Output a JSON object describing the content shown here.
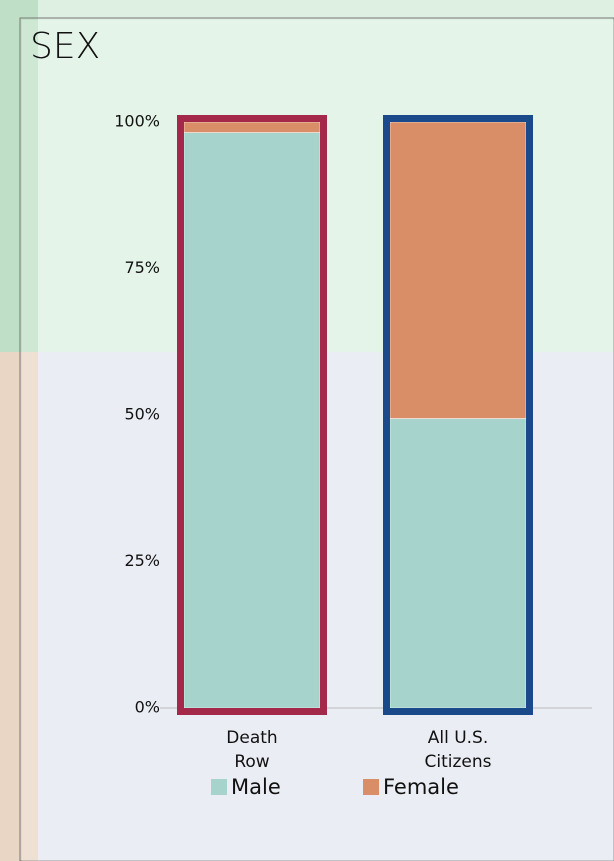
{
  "chart_data": {
    "type": "stacked_bar",
    "title": "SEX",
    "categories": [
      "Death Row",
      "All U.S. Citizens"
    ],
    "series": [
      {
        "name": "Male",
        "color": "#a6d3cc",
        "values": [
          98.2,
          49.4
        ]
      },
      {
        "name": "Female",
        "color": "#d98e68",
        "values": [
          1.8,
          50.6
        ]
      }
    ],
    "outline_colors": [
      "#a3284a",
      "#1b4a8a"
    ],
    "ylim": [
      0,
      100
    ],
    "yticks": [
      {
        "value": 0,
        "label": "0%"
      },
      {
        "value": 25,
        "label": "25%"
      },
      {
        "value": 50,
        "label": "50%"
      },
      {
        "value": 75,
        "label": "75%"
      },
      {
        "value": 100,
        "label": "100%"
      }
    ],
    "legend": "bottom"
  }
}
